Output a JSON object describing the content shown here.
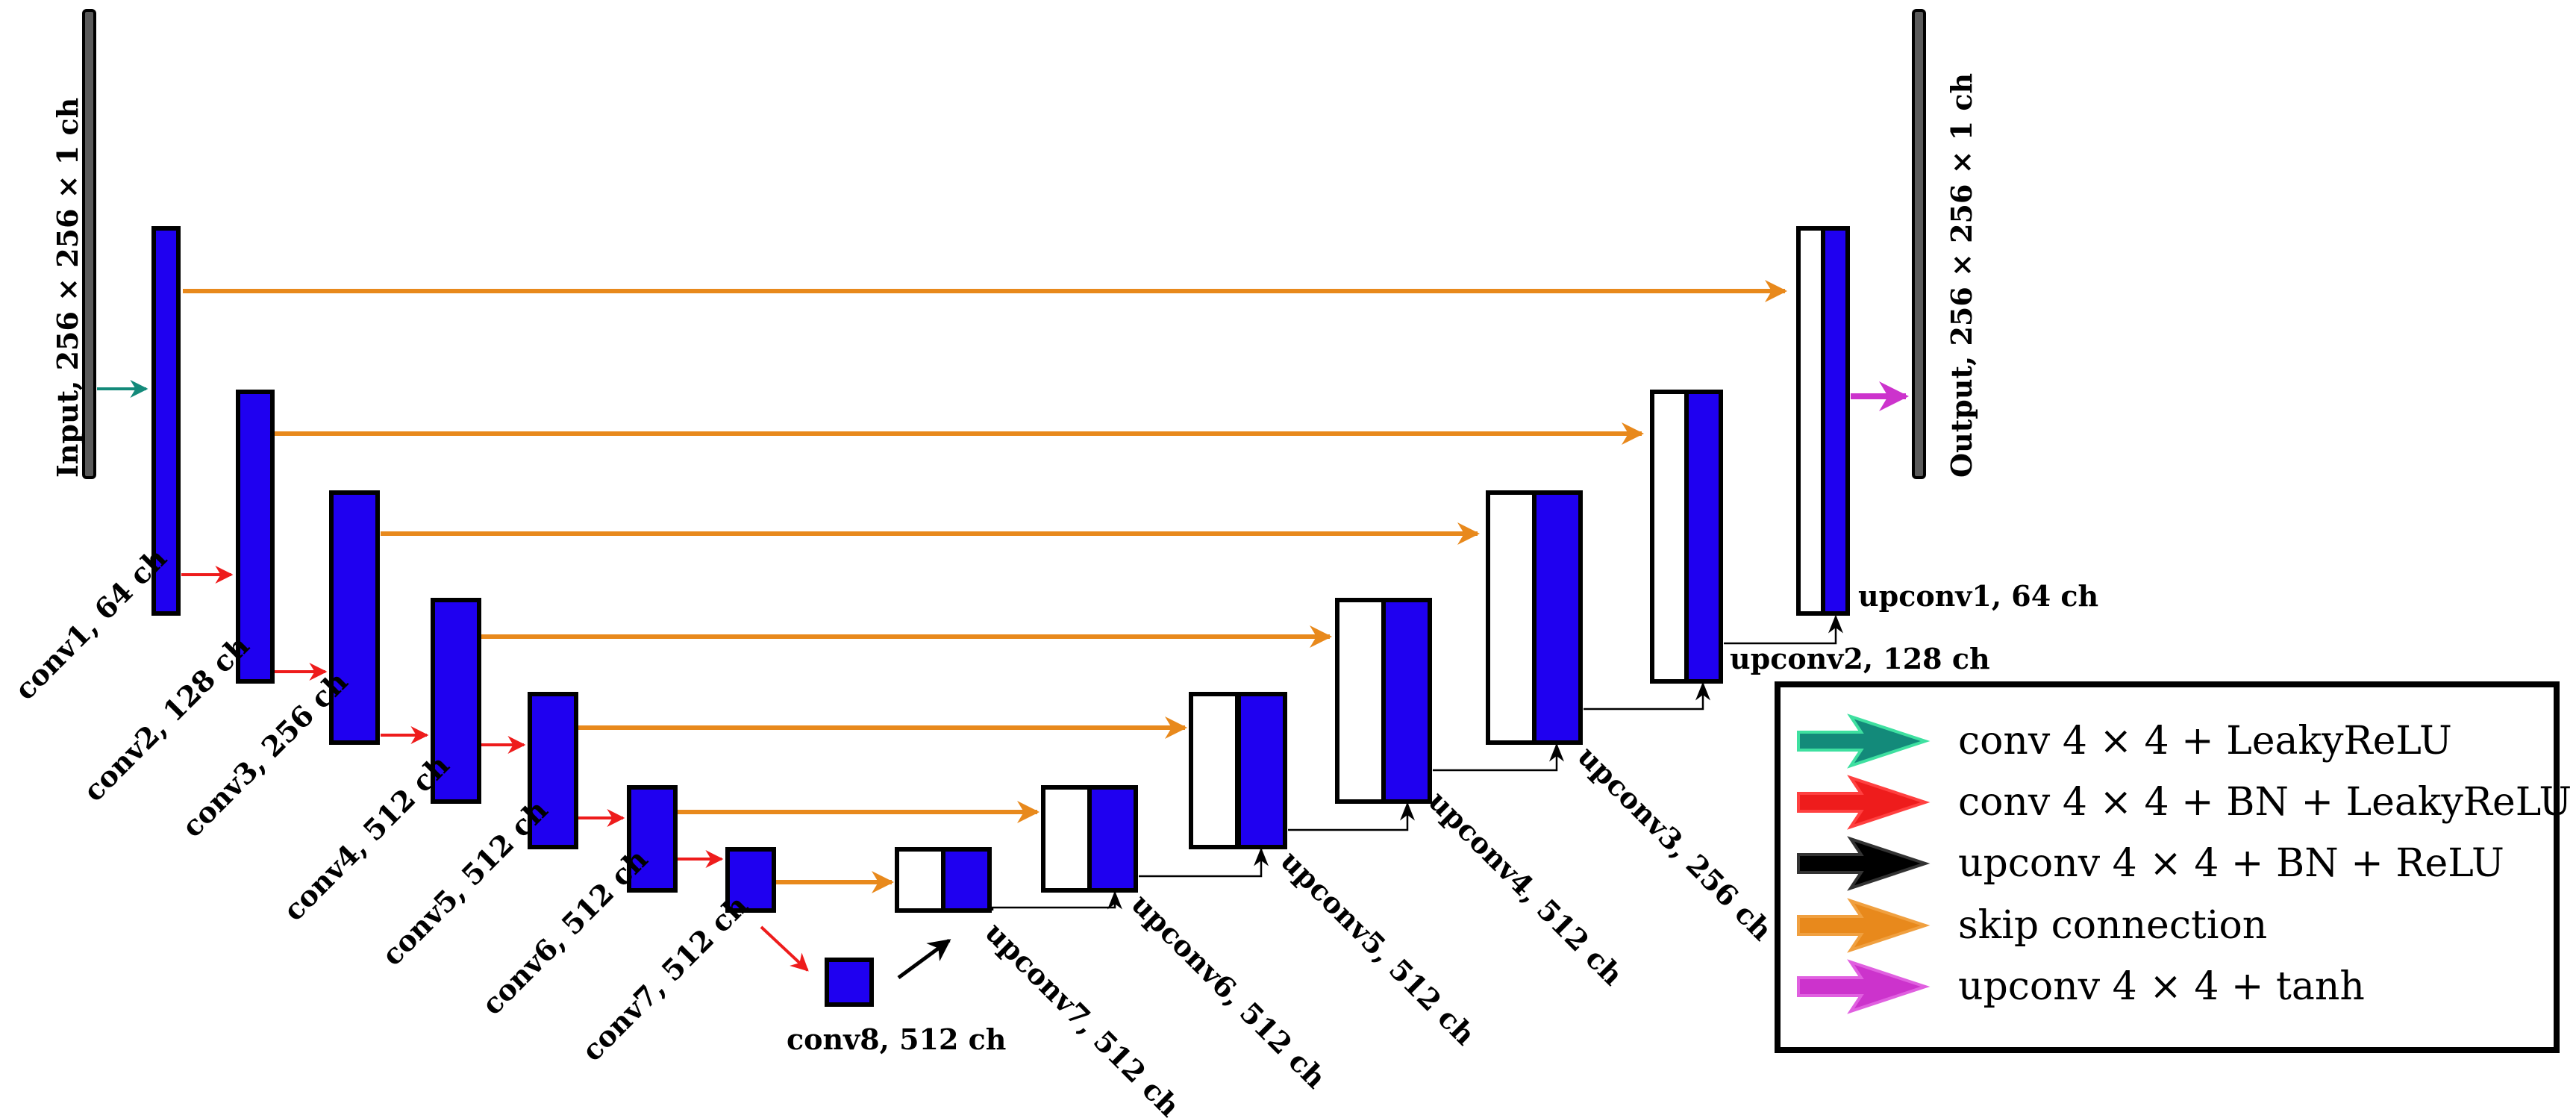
{
  "colors": {
    "block_fill": "#1f00f0",
    "block_stroke": "#000000",
    "io_bar": "#5a5a5a",
    "arrow_conv": "#138a7a",
    "arrow_conv_bn": "#ee1c1c",
    "arrow_upconv": "#000000",
    "arrow_skip": "#e8891c",
    "arrow_tanh": "#cc33cc"
  },
  "labels": {
    "input": "Input, 256 × 256 × 1 ch",
    "output": "Output, 256 × 256 × 1 ch",
    "conv1": "conv1, 64 ch",
    "conv2": "conv2, 128 ch",
    "conv3": "conv3, 256 ch",
    "conv4": "conv4, 512 ch",
    "conv5": "conv5, 512 ch",
    "conv6": "conv6, 512 ch",
    "conv7": "conv7, 512 ch",
    "conv8": "conv8, 512 ch",
    "upconv7": "upconv7, 512 ch",
    "upconv6": "upconv6, 512 ch",
    "upconv5": "upconv5, 512 ch",
    "upconv4": "upconv4, 512 ch",
    "upconv3": "upconv3, 256 ch",
    "upconv2": "upconv2, 128 ch",
    "upconv1": "upconv1, 64 ch"
  },
  "legend": [
    {
      "label": "conv 4 × 4 + LeakyReLU",
      "color": "#138a7a",
      "edge": "#3ee0a0"
    },
    {
      "label": "conv 4 × 4 + BN + LeakyReLU",
      "color": "#ee1c1c",
      "edge": "#ff4040"
    },
    {
      "label": "upconv 4 × 4 + BN + ReLU",
      "color": "#000000",
      "edge": "#333333"
    },
    {
      "label": "skip connection",
      "color": "#e8891c",
      "edge": "#f0a040"
    },
    {
      "label": "upconv 4 × 4 + tanh",
      "color": "#cc33cc",
      "edge": "#e060e0"
    }
  ]
}
